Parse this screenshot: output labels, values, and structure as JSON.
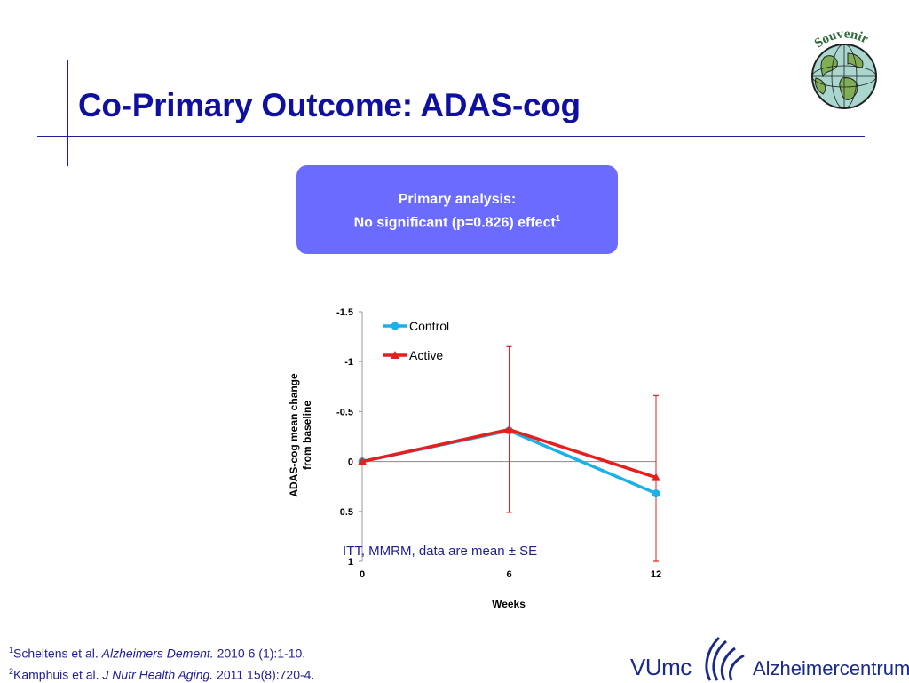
{
  "slide": {
    "title": "Co-Primary Outcome: ADAS-cog",
    "logo_text": "Souvenir"
  },
  "callout": {
    "line1": "Primary analysis:",
    "line2": "No significant (p=0.826) effect",
    "line2_sup": "1"
  },
  "note": "ITT, MMRM, data are mean ± SE",
  "references": [
    {
      "sup": "1",
      "authors": "Scheltens et al.",
      "journal": "Alzheimers Dement.",
      "details": "2010 6 (1):1-10."
    },
    {
      "sup": "2",
      "authors": "Kamphuis et al.",
      "journal": "J Nutr Health Aging.",
      "details": "2011 15(8):720-4."
    }
  ],
  "footer": {
    "brand1": "VUmc",
    "brand2": "Alzheimercentrum"
  },
  "colors": {
    "title": "#1010a0",
    "callout_bg": "#6b6bff",
    "control": "#1ab0e8",
    "active": "#e61e1e"
  },
  "chart_data": {
    "type": "line",
    "title": "",
    "xlabel": "Weeks",
    "ylabel": "ADAS-cog mean change from baseline",
    "ylabel_lines": [
      "ADAS-cog mean change",
      "from baseline"
    ],
    "y_inverted": true,
    "ylim": [
      -1.5,
      1
    ],
    "yticks": [
      -1.5,
      -1,
      -0.5,
      0,
      0.5,
      1
    ],
    "ytick_labels": [
      "-1.5",
      "-1",
      "-0.5",
      "0",
      "0.5",
      "1"
    ],
    "x": [
      0,
      6,
      12
    ],
    "xtick_labels": [
      "0",
      "6",
      "12"
    ],
    "series": [
      {
        "name": "Control",
        "color": "#1ab0e8",
        "marker": "circle",
        "values": [
          0,
          -0.31,
          0.32
        ]
      },
      {
        "name": "Active",
        "color": "#e61e1e",
        "marker": "triangle",
        "values": [
          0,
          -0.32,
          0.16
        ],
        "error_upper": [
          0,
          -1.15,
          -0.66
        ],
        "error_lower": [
          0,
          0.51,
          1.0
        ]
      }
    ],
    "legend": "top-left",
    "grid": false
  }
}
